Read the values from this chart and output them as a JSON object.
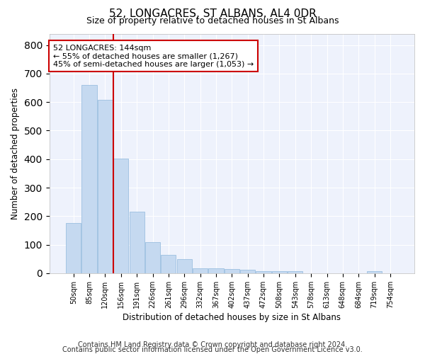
{
  "title": "52, LONGACRES, ST ALBANS, AL4 0DR",
  "subtitle": "Size of property relative to detached houses in St Albans",
  "xlabel": "Distribution of detached houses by size in St Albans",
  "ylabel": "Number of detached properties",
  "bar_color": "#c5d9f0",
  "bar_edge_color": "#9bbfe0",
  "background_color": "#eef2fc",
  "grid_color": "#ffffff",
  "vline_color": "#cc0000",
  "annotation_line1": "52 LONGACRES: 144sqm",
  "annotation_line2": "← 55% of detached houses are smaller (1,267)",
  "annotation_line3": "45% of semi-detached houses are larger (1,053) →",
  "annotation_box_color": "#ffffff",
  "annotation_edge_color": "#cc0000",
  "categories": [
    "50sqm",
    "85sqm",
    "120sqm",
    "156sqm",
    "191sqm",
    "226sqm",
    "261sqm",
    "296sqm",
    "332sqm",
    "367sqm",
    "402sqm",
    "437sqm",
    "472sqm",
    "508sqm",
    "543sqm",
    "578sqm",
    "613sqm",
    "648sqm",
    "684sqm",
    "719sqm",
    "754sqm"
  ],
  "values": [
    175,
    660,
    608,
    402,
    215,
    110,
    65,
    50,
    18,
    17,
    16,
    13,
    8,
    8,
    7,
    0,
    0,
    0,
    0,
    8,
    0
  ],
  "ylim": [
    0,
    840
  ],
  "yticks": [
    0,
    100,
    200,
    300,
    400,
    500,
    600,
    700,
    800
  ],
  "footer_line1": "Contains HM Land Registry data © Crown copyright and database right 2024.",
  "footer_line2": "Contains public sector information licensed under the Open Government Licence v3.0.",
  "figsize": [
    6.0,
    5.0
  ],
  "dpi": 100
}
